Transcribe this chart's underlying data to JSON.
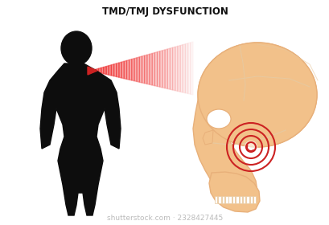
{
  "title": "TMD/TMJ DYSFUNCTION",
  "title_fontsize": 8.5,
  "title_fontweight": "bold",
  "bg_color": "#ffffff",
  "silhouette_color": "#0d0d0d",
  "skull_fill": "#f2c18a",
  "skull_line": "#e8b07a",
  "skull_line_inner": "#e8c89e",
  "pain_circle_color": "#cc2222",
  "watermark": "shutterstock.com · 2328427445",
  "watermark_fontsize": 6.5
}
